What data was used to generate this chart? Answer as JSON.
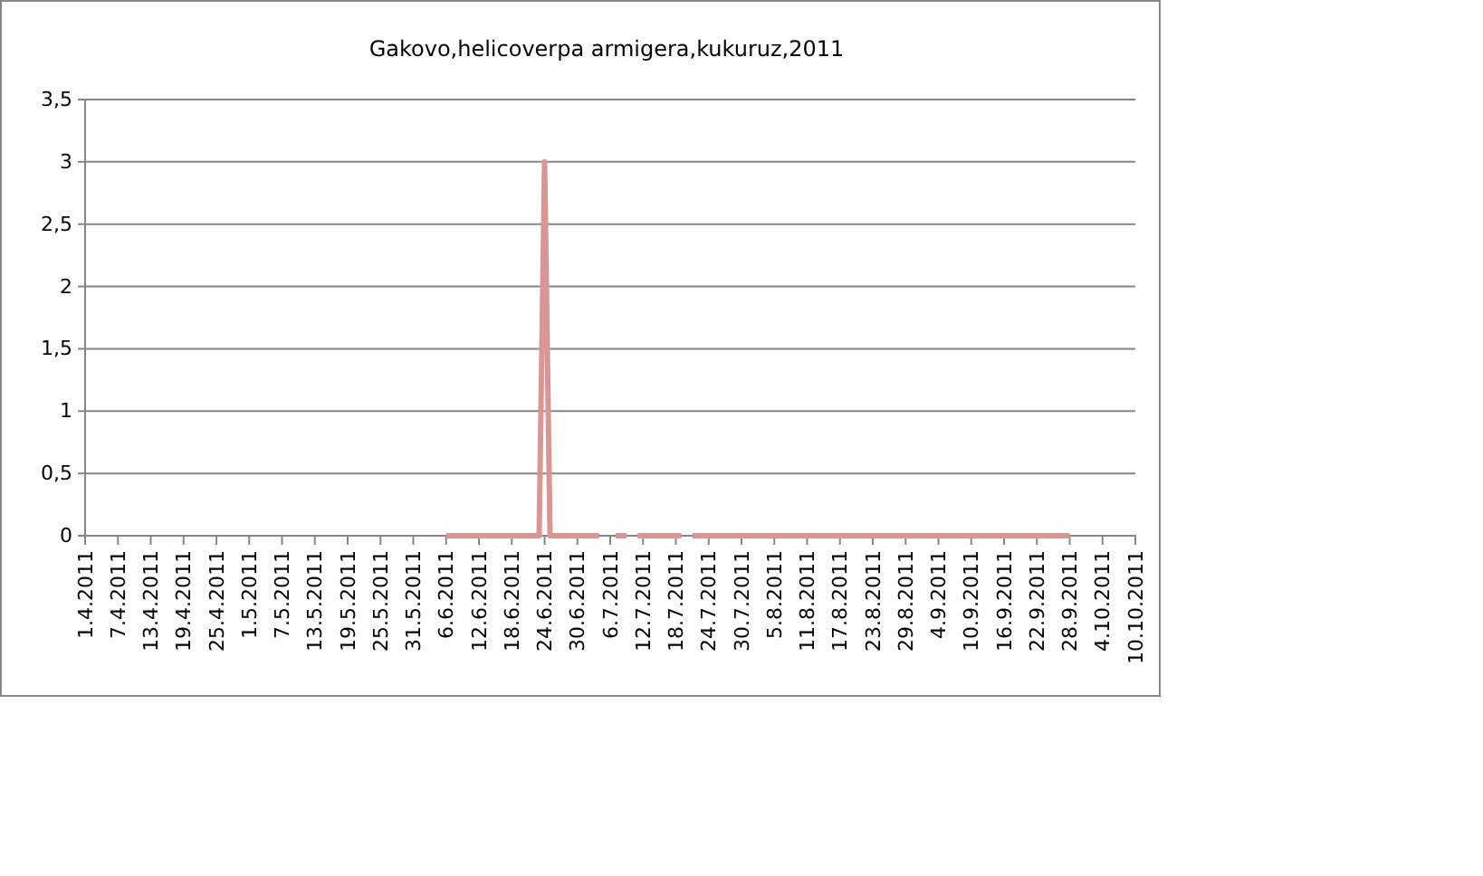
{
  "chart_data": {
    "type": "line",
    "title": "Gakovo,helicoverpa armigera,kukuruz,2011",
    "xlim": [
      "2011-04-01",
      "2011-10-10"
    ],
    "xticks": [
      {
        "value": "2011-04-01",
        "label": "1.4.2011"
      },
      {
        "value": "2011-04-07",
        "label": "7.4.2011"
      },
      {
        "value": "2011-04-13",
        "label": "13.4.2011"
      },
      {
        "value": "2011-04-19",
        "label": "19.4.2011"
      },
      {
        "value": "2011-04-25",
        "label": "25.4.2011"
      },
      {
        "value": "2011-05-01",
        "label": "1.5.2011"
      },
      {
        "value": "2011-05-07",
        "label": "7.5.2011"
      },
      {
        "value": "2011-05-13",
        "label": "13.5.2011"
      },
      {
        "value": "2011-05-19",
        "label": "19.5.2011"
      },
      {
        "value": "2011-05-25",
        "label": "25.5.2011"
      },
      {
        "value": "2011-05-31",
        "label": "31.5.2011"
      },
      {
        "value": "2011-06-06",
        "label": "6.6.2011"
      },
      {
        "value": "2011-06-12",
        "label": "12.6.2011"
      },
      {
        "value": "2011-06-18",
        "label": "18.6.2011"
      },
      {
        "value": "2011-06-24",
        "label": "24.6.2011"
      },
      {
        "value": "2011-06-30",
        "label": "30.6.2011"
      },
      {
        "value": "2011-07-06",
        "label": "6.7.2011"
      },
      {
        "value": "2011-07-12",
        "label": "12.7.2011"
      },
      {
        "value": "2011-07-18",
        "label": "18.7.2011"
      },
      {
        "value": "2011-07-24",
        "label": "24.7.2011"
      },
      {
        "value": "2011-07-30",
        "label": "30.7.2011"
      },
      {
        "value": "2011-08-05",
        "label": "5.8.2011"
      },
      {
        "value": "2011-08-11",
        "label": "11.8.2011"
      },
      {
        "value": "2011-08-17",
        "label": "17.8.2011"
      },
      {
        "value": "2011-08-23",
        "label": "23.8.2011"
      },
      {
        "value": "2011-08-29",
        "label": "29.8.2011"
      },
      {
        "value": "2011-09-04",
        "label": "4.9.2011"
      },
      {
        "value": "2011-09-10",
        "label": "10.9.2011"
      },
      {
        "value": "2011-09-16",
        "label": "16.9.2011"
      },
      {
        "value": "2011-09-22",
        "label": "22.9.2011"
      },
      {
        "value": "2011-09-28",
        "label": "28.9.2011"
      },
      {
        "value": "2011-10-04",
        "label": "4.10.2011"
      },
      {
        "value": "2011-10-10",
        "label": "10.10.2011"
      }
    ],
    "ylim": [
      0,
      3.5
    ],
    "yticks": [
      0,
      {
        "value": 0.5,
        "label": "0,5"
      },
      1,
      {
        "value": 1.5,
        "label": "1,5"
      },
      2,
      {
        "value": 2.5,
        "label": "2,5"
      },
      3,
      {
        "value": 3.5,
        "label": "3,5"
      }
    ],
    "grid": "y",
    "marker": "none",
    "line_style": "solid",
    "series": [
      {
        "color": "#d99694",
        "x": [
          "2011-06-06",
          "2011-06-23",
          "2011-06-24",
          "2011-06-25",
          "2011-07-04",
          "2011-07-05",
          "2011-07-07",
          "2011-07-09",
          "2011-07-10",
          "2011-07-11",
          "2011-07-19",
          "2011-07-20",
          "2011-07-21",
          "2011-09-28"
        ],
        "values": [
          0,
          0,
          3,
          0,
          0,
          null,
          0,
          0,
          null,
          0,
          0,
          null,
          0,
          0
        ]
      }
    ]
  }
}
